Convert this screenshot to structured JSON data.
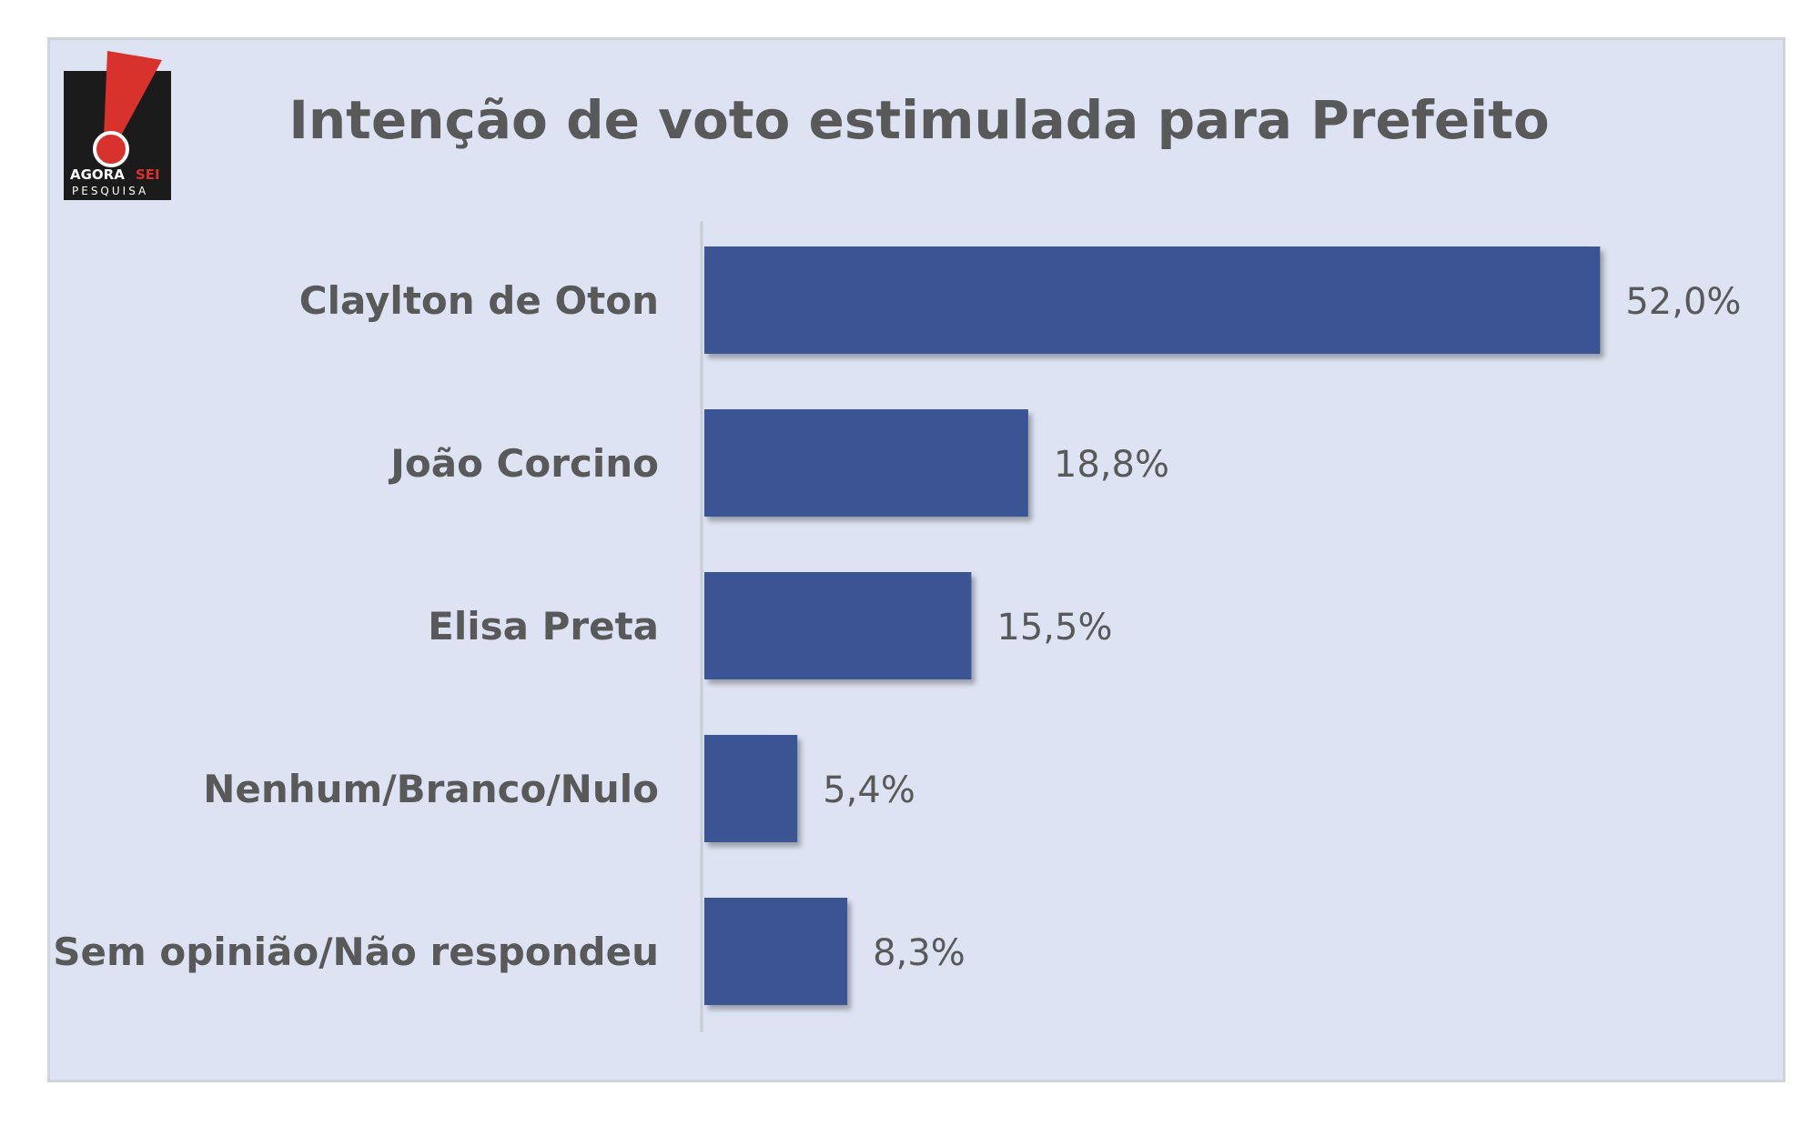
{
  "chart_data": {
    "type": "bar",
    "orientation": "horizontal",
    "title": "Intenção de voto estimulada para Prefeito",
    "categories": [
      "Claylton de Oton",
      "João Corcino",
      "Elisa Preta",
      "Nenhum/Branco/Nulo",
      "Sem opinião/Não respondeu"
    ],
    "values": [
      52.0,
      18.8,
      15.5,
      5.4,
      8.3
    ],
    "value_labels": [
      "52,0%",
      "18,8%",
      "15,5%",
      "5,4%",
      "8,3%"
    ],
    "xlabel": "",
    "ylabel": "",
    "xlim": [
      0,
      60
    ],
    "grid": false,
    "legend": "none",
    "bar_color": "#3a5594",
    "background_color": "#dde3f2",
    "label_color": "#595959"
  },
  "logo": {
    "brand_line1_left": "AGORA",
    "brand_line1_right": "SEI",
    "brand_line2": "PESQUISA",
    "accent_color": "#d9312b",
    "background_color": "#1b1b1b"
  }
}
